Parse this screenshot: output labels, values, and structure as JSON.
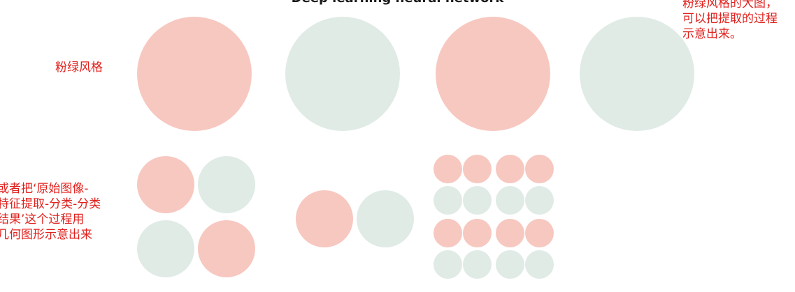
{
  "title": "Deep learning neural network",
  "notes": {
    "style_label": "粉绿风格",
    "left_description": "或者把‘原始图像-\n特征提取-分类-分类\n结果’这个过程用\n几何图形示意出来",
    "right_description": "粉绿风格的大图，\n可以把提取的过程\n示意出来。"
  },
  "colors": {
    "pink": "#f7c8c0",
    "green": "#e0ebe6",
    "note_text": "#e0201c"
  }
}
